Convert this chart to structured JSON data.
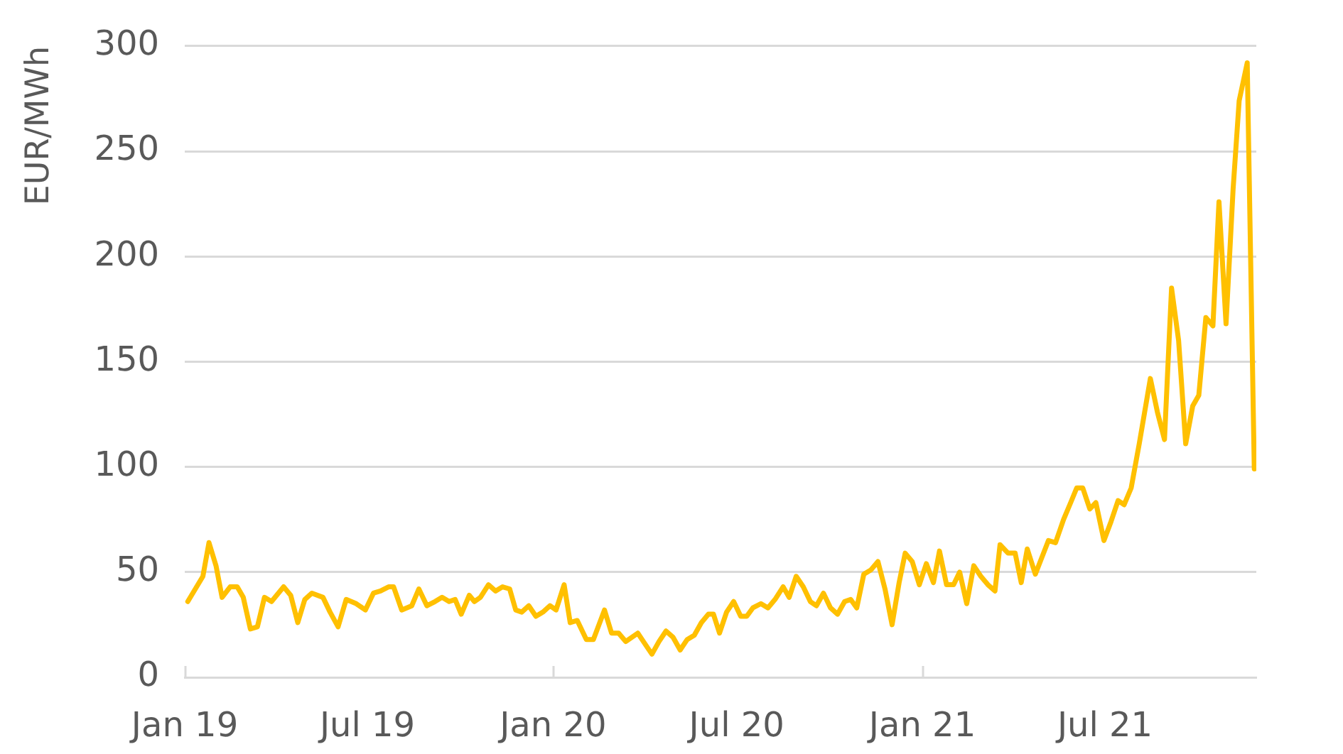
{
  "chart_data": {
    "type": "line",
    "ylabel": "EUR/MWh",
    "color": "#ffc000",
    "x": [
      "2019-01-04",
      "2019-01-19",
      "2019-01-25",
      "2019-02-01",
      "2019-02-07",
      "2019-02-15",
      "2019-02-22",
      "2019-02-28",
      "2019-03-07",
      "2019-03-14",
      "2019-03-21",
      "2019-03-28",
      "2019-04-09",
      "2019-04-16",
      "2019-04-23",
      "2019-04-30",
      "2019-05-07",
      "2019-05-18",
      "2019-05-25",
      "2019-06-02",
      "2019-06-10",
      "2019-06-20",
      "2019-06-29",
      "2019-07-07",
      "2019-07-14",
      "2019-07-22",
      "2019-07-27",
      "2019-08-04",
      "2019-08-14",
      "2019-08-21",
      "2019-08-29",
      "2019-09-06",
      "2019-09-13",
      "2019-09-20",
      "2019-09-26",
      "2019-10-02",
      "2019-10-10",
      "2019-10-15",
      "2019-10-21",
      "2019-10-29",
      "2019-11-05",
      "2019-11-12",
      "2019-11-19",
      "2019-11-25",
      "2019-12-01",
      "2019-12-08",
      "2019-12-15",
      "2019-12-22",
      "2019-12-29",
      "2020-01-04",
      "2020-01-12",
      "2020-01-18",
      "2020-01-25",
      "2020-02-03",
      "2020-02-10",
      "2020-02-21",
      "2020-02-28",
      "2020-03-06",
      "2020-03-13",
      "2020-03-25",
      "2020-04-01",
      "2020-04-08",
      "2020-04-15",
      "2020-04-22",
      "2020-04-29",
      "2020-05-06",
      "2020-05-13",
      "2020-05-20",
      "2020-05-27",
      "2020-06-03",
      "2020-06-08",
      "2020-06-14",
      "2020-06-21",
      "2020-06-28",
      "2020-07-05",
      "2020-07-11",
      "2020-07-17",
      "2020-07-25",
      "2020-08-01",
      "2020-08-08",
      "2020-08-16",
      "2020-08-22",
      "2020-08-29",
      "2020-09-05",
      "2020-09-12",
      "2020-09-18",
      "2020-09-25",
      "2020-10-02",
      "2020-10-09",
      "2020-10-16",
      "2020-10-22",
      "2020-10-28",
      "2020-11-04",
      "2020-11-11",
      "2020-11-18",
      "2020-11-25",
      "2020-12-02",
      "2020-12-09",
      "2020-12-15",
      "2020-12-22",
      "2020-12-29",
      "2021-01-05",
      "2021-01-12",
      "2021-01-18",
      "2021-01-25",
      "2021-02-01",
      "2021-02-07",
      "2021-02-14",
      "2021-02-21",
      "2021-02-28",
      "2021-03-07",
      "2021-03-14",
      "2021-03-19",
      "2021-03-27",
      "2021-04-03",
      "2021-04-09",
      "2021-04-15",
      "2021-04-23",
      "2021-05-06",
      "2021-05-13",
      "2021-05-21",
      "2021-05-28",
      "2021-06-03",
      "2021-06-09",
      "2021-06-16",
      "2021-06-22",
      "2021-06-30",
      "2021-07-07",
      "2021-07-14",
      "2021-07-20",
      "2021-07-27",
      "2021-08-04",
      "2021-08-15",
      "2021-08-22",
      "2021-08-29",
      "2021-09-05",
      "2021-09-12",
      "2021-09-19",
      "2021-09-26",
      "2021-10-02",
      "2021-10-09",
      "2021-10-16",
      "2021-10-22",
      "2021-10-29",
      "2021-11-05",
      "2021-11-11",
      "2021-11-19",
      "2021-11-26"
    ],
    "values": [
      36,
      48,
      64,
      53,
      38,
      43,
      43,
      38,
      23,
      24,
      38,
      36,
      43,
      39,
      26,
      37,
      40,
      38,
      31,
      24,
      37,
      35,
      32,
      40,
      41,
      43,
      43,
      32,
      34,
      42,
      34,
      36,
      38,
      36,
      37,
      30,
      39,
      36,
      38,
      44,
      41,
      43,
      42,
      32,
      31,
      34,
      29,
      31,
      34,
      32,
      44,
      26,
      27,
      18,
      18,
      32,
      21,
      21,
      17,
      21,
      16,
      11,
      17,
      22,
      19,
      13,
      18,
      20,
      26,
      30,
      30,
      21,
      31,
      36,
      29,
      29,
      33,
      35,
      33,
      37,
      43,
      38,
      48,
      43,
      36,
      34,
      40,
      33,
      30,
      36,
      37,
      33,
      49,
      51,
      55,
      42,
      25,
      45,
      59,
      55,
      44,
      54,
      45,
      60,
      44,
      44,
      50,
      35,
      53,
      48,
      44,
      41,
      63,
      59,
      59,
      45,
      61,
      49,
      65,
      64,
      75,
      83,
      90,
      90,
      80,
      83,
      65,
      74,
      84,
      82,
      90,
      111,
      142,
      126,
      113,
      185,
      160,
      111,
      129,
      134,
      171,
      167,
      226,
      168,
      232,
      274,
      292,
      99
    ],
    "xlim": [
      "2019-01-01",
      "2021-11-28"
    ],
    "xticks": [
      {
        "value": "2019-01-01",
        "label": "Jan 19"
      },
      {
        "value": "2019-07-01",
        "label": "Jul 19"
      },
      {
        "value": "2020-01-01",
        "label": "Jan 20"
      },
      {
        "value": "2020-07-01",
        "label": "Jul 20"
      },
      {
        "value": "2021-01-01",
        "label": "Jan 21"
      },
      {
        "value": "2021-07-01",
        "label": "Jul 21"
      }
    ],
    "ylim": [
      0,
      300
    ],
    "yticks": [
      0,
      50,
      100,
      150,
      200,
      250,
      300
    ],
    "grid": "y"
  }
}
